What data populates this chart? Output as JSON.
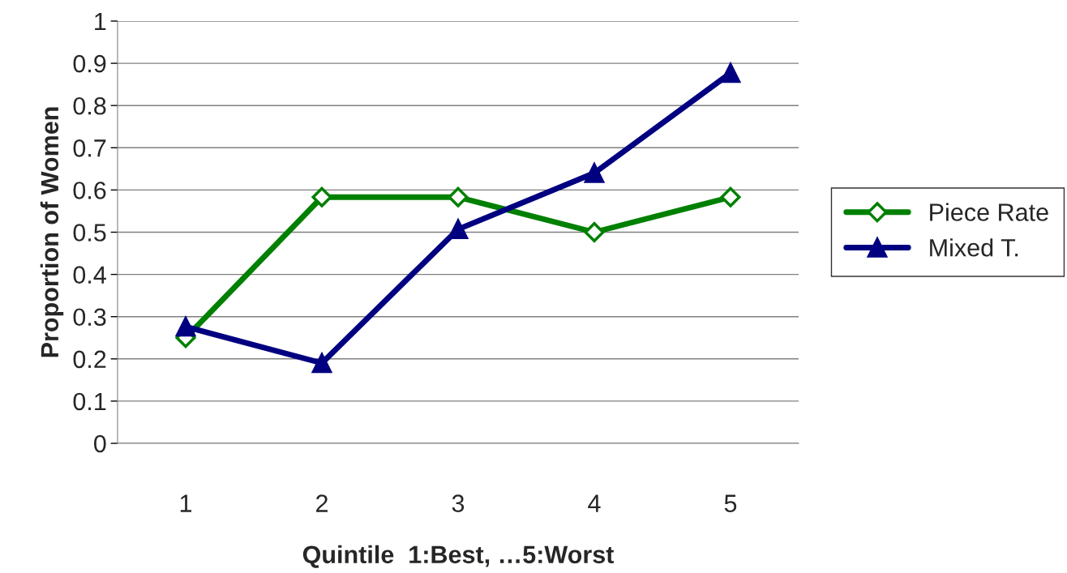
{
  "chart_data": {
    "type": "line",
    "xlabel": "Quintile  1:Best, …5:Worst",
    "ylabel": "Proportion of Women",
    "categories": [
      "1",
      "2",
      "3",
      "4",
      "5"
    ],
    "series": [
      {
        "name": "Piece Rate",
        "color": "#008000",
        "marker": "diamond",
        "values": [
          0.25,
          0.583,
          0.583,
          0.5,
          0.583
        ]
      },
      {
        "name": "Mixed T.",
        "color": "#000080",
        "marker": "triangle",
        "values": [
          0.276,
          0.19,
          0.507,
          0.64,
          0.877
        ]
      }
    ],
    "ylim": [
      0,
      1
    ],
    "yticks": [
      0,
      0.1,
      0.2,
      0.3,
      0.4,
      0.5,
      0.6,
      0.7,
      0.8,
      0.9,
      1
    ],
    "grid": "y",
    "legend": "right"
  }
}
